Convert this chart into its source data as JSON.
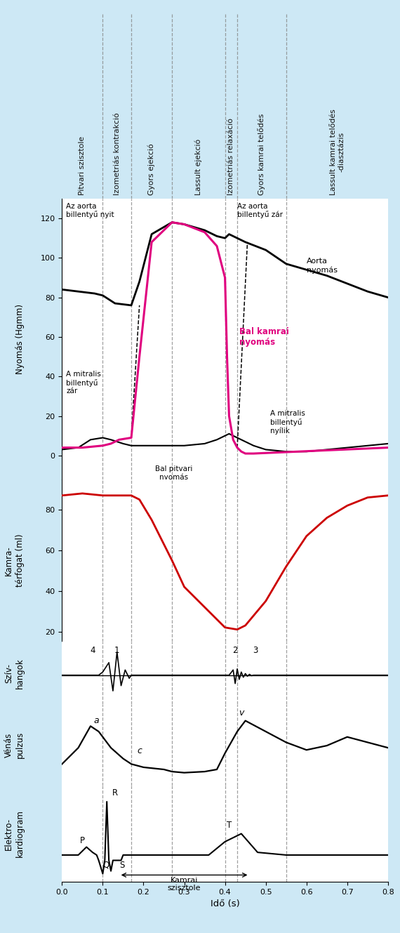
{
  "bg_color": "#cde8f5",
  "vlines": [
    0.0,
    0.1,
    0.17,
    0.27,
    0.4,
    0.43,
    0.55,
    0.8
  ],
  "xlim": [
    0.0,
    0.8
  ],
  "title_labels": [
    "Pitvari szisztole",
    "Izometriás kontrakció",
    "Gyors ejekció",
    "Lassult ejekció",
    "Izometriás relaxáció",
    "Gyors kamrai telődés",
    "Lassult kamrai telődés\n-diasztázis"
  ],
  "aorta_x": [
    0.0,
    0.04,
    0.08,
    0.1,
    0.13,
    0.17,
    0.19,
    0.22,
    0.27,
    0.3,
    0.35,
    0.38,
    0.4,
    0.41,
    0.43,
    0.45,
    0.5,
    0.55,
    0.6,
    0.65,
    0.7,
    0.75,
    0.8
  ],
  "aorta_y": [
    84,
    83,
    82,
    81,
    77,
    76,
    88,
    112,
    118,
    117,
    114,
    111,
    110,
    112,
    110,
    108,
    104,
    97,
    94,
    91,
    87,
    83,
    80
  ],
  "lv_x": [
    0.0,
    0.05,
    0.1,
    0.12,
    0.14,
    0.17,
    0.19,
    0.22,
    0.27,
    0.3,
    0.35,
    0.38,
    0.4,
    0.405,
    0.41,
    0.42,
    0.43,
    0.44,
    0.45,
    0.46,
    0.47,
    0.8
  ],
  "lv_y": [
    4,
    4,
    5,
    6,
    8,
    9,
    50,
    108,
    118,
    117,
    113,
    106,
    90,
    50,
    20,
    8,
    4,
    2,
    1,
    1,
    1,
    4
  ],
  "la_x": [
    0.0,
    0.04,
    0.07,
    0.1,
    0.12,
    0.15,
    0.17,
    0.22,
    0.27,
    0.3,
    0.35,
    0.38,
    0.4,
    0.41,
    0.43,
    0.45,
    0.47,
    0.5,
    0.55,
    0.6,
    0.65,
    0.7,
    0.75,
    0.8
  ],
  "la_y": [
    3,
    4,
    8,
    9,
    8,
    6,
    5,
    5,
    5,
    5,
    6,
    8,
    10,
    11,
    9,
    7,
    5,
    3,
    2,
    2,
    3,
    4,
    5,
    6
  ],
  "vol_x": [
    0.0,
    0.05,
    0.1,
    0.17,
    0.19,
    0.22,
    0.27,
    0.3,
    0.35,
    0.4,
    0.43,
    0.45,
    0.5,
    0.55,
    0.6,
    0.65,
    0.7,
    0.75,
    0.8
  ],
  "vol_y": [
    87,
    88,
    87,
    87,
    85,
    75,
    55,
    42,
    32,
    22,
    21,
    23,
    35,
    52,
    67,
    76,
    82,
    86,
    87
  ],
  "hs_x": [
    0.0,
    0.09,
    0.1,
    0.115,
    0.125,
    0.135,
    0.145,
    0.155,
    0.165,
    0.17,
    0.3,
    0.41,
    0.42,
    0.425,
    0.43,
    0.435,
    0.44,
    0.445,
    0.45,
    0.455,
    0.46,
    0.465,
    0.47,
    0.8
  ],
  "hs_y": [
    0,
    0,
    0.3,
    1.2,
    -1.5,
    2.2,
    -1.0,
    0.5,
    -0.3,
    0,
    0,
    0,
    0.5,
    -0.8,
    0.6,
    -0.4,
    0.3,
    -0.2,
    0.15,
    -0.1,
    0.08,
    -0.05,
    0,
    0
  ],
  "vp_x": [
    0.0,
    0.04,
    0.07,
    0.09,
    0.12,
    0.15,
    0.17,
    0.2,
    0.25,
    0.27,
    0.3,
    0.35,
    0.38,
    0.4,
    0.43,
    0.45,
    0.5,
    0.55,
    0.6,
    0.65,
    0.7,
    0.75,
    0.8
  ],
  "vp_y": [
    3.5,
    5.0,
    7.0,
    6.5,
    5.0,
    4.0,
    3.5,
    3.2,
    3.0,
    2.8,
    2.7,
    2.8,
    3.0,
    4.5,
    6.5,
    7.5,
    6.5,
    5.5,
    4.8,
    5.2,
    6.0,
    5.5,
    5.0
  ],
  "ecg_x": [
    0.0,
    0.04,
    0.06,
    0.075,
    0.085,
    0.09,
    0.1,
    0.105,
    0.11,
    0.115,
    0.12,
    0.125,
    0.13,
    0.135,
    0.14,
    0.145,
    0.15,
    0.16,
    0.2,
    0.3,
    0.36,
    0.4,
    0.44,
    0.48,
    0.55,
    0.8
  ],
  "ecg_y": [
    0.2,
    0.2,
    0.5,
    0.3,
    0.2,
    0.0,
    -0.5,
    0.0,
    2.2,
    0.0,
    -0.4,
    0.0,
    0.0,
    0.0,
    0.0,
    0.0,
    0.2,
    0.2,
    0.2,
    0.2,
    0.2,
    0.7,
    1.0,
    0.3,
    0.2,
    0.2
  ]
}
